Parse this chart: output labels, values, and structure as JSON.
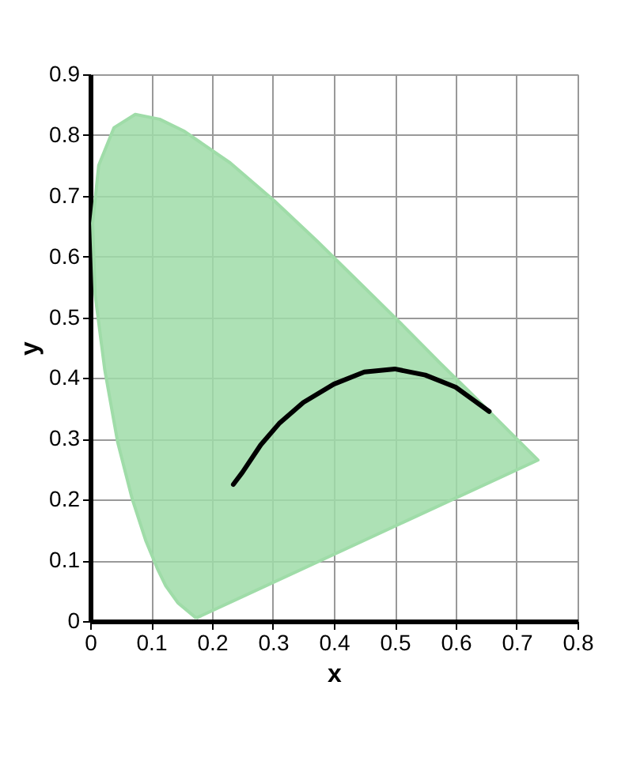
{
  "chart_data": {
    "type": "line",
    "xlabel": "x",
    "ylabel": "y",
    "xlim": [
      0,
      0.8
    ],
    "ylim": [
      0,
      0.9
    ],
    "xticks": [
      0,
      0.1,
      0.2,
      0.3,
      0.4,
      0.5,
      0.6,
      0.7,
      0.8
    ],
    "yticks": [
      0,
      0.1,
      0.2,
      0.3,
      0.4,
      0.5,
      0.6,
      0.7,
      0.8,
      0.9
    ],
    "grid": true,
    "series": [
      {
        "type": "area",
        "color": "#9fdca8",
        "x": [
          0.174,
          0.144,
          0.124,
          0.11,
          0.091,
          0.069,
          0.045,
          0.024,
          0.008,
          0.004,
          0.014,
          0.039,
          0.074,
          0.114,
          0.155,
          0.23,
          0.302,
          0.373,
          0.444,
          0.513,
          0.575,
          0.627,
          0.692,
          0.719,
          0.735,
          0.174
        ],
        "values": [
          0.005,
          0.03,
          0.058,
          0.087,
          0.133,
          0.201,
          0.295,
          0.413,
          0.538,
          0.655,
          0.75,
          0.812,
          0.834,
          0.826,
          0.806,
          0.754,
          0.692,
          0.625,
          0.555,
          0.487,
          0.424,
          0.373,
          0.308,
          0.281,
          0.265,
          0.005
        ]
      },
      {
        "color": "#000000",
        "x": [
          0.235,
          0.25,
          0.28,
          0.31,
          0.35,
          0.4,
          0.45,
          0.5,
          0.55,
          0.6,
          0.655
        ],
        "values": [
          0.225,
          0.245,
          0.29,
          0.325,
          0.36,
          0.39,
          0.41,
          0.415,
          0.405,
          0.385,
          0.345
        ]
      }
    ]
  }
}
